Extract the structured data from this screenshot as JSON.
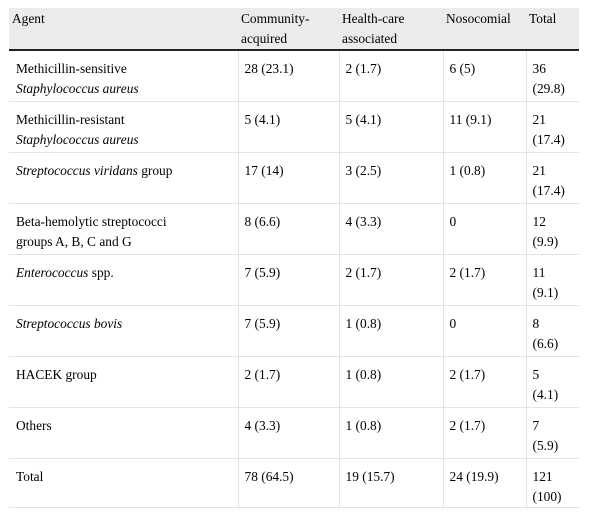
{
  "table": {
    "headers": [
      [
        "Agent"
      ],
      [
        "Community-",
        "acquired"
      ],
      [
        "Health-care",
        "associated"
      ],
      [
        "Nosocomial"
      ],
      [
        "Total"
      ]
    ],
    "rows": [
      {
        "agent": [
          {
            "text": "Methicillin-sensitive",
            "italic": false
          },
          {
            "text": "Staphylococcus aureus",
            "italic": true
          }
        ],
        "community": "28 (23.1)",
        "healthcare": "2 (1.7)",
        "nosocomial": "6 (5)",
        "total": [
          "36",
          "(29.8)"
        ]
      },
      {
        "agent": [
          {
            "text": "Methicillin-resistant",
            "italic": false
          },
          {
            "text": "Staphylococcus aureus",
            "italic": true
          }
        ],
        "community": "5 (4.1)",
        "healthcare": "5 (4.1)",
        "nosocomial": "11 (9.1)",
        "total": [
          "21",
          "(17.4)"
        ]
      },
      {
        "agent": [
          {
            "segments": [
              {
                "text": "Streptococcus viridans",
                "italic": true
              },
              {
                "text": " group",
                "italic": false
              }
            ]
          }
        ],
        "community": "17 (14)",
        "healthcare": "3 (2.5)",
        "nosocomial": "1 (0.8)",
        "total": [
          "21",
          "(17.4)"
        ]
      },
      {
        "agent": [
          {
            "text": "Beta-hemolytic streptococci",
            "italic": false
          },
          {
            "text": "groups A, B, C and G",
            "italic": false
          }
        ],
        "community": "8 (6.6)",
        "healthcare": "4 (3.3)",
        "nosocomial": "0",
        "total": [
          "12",
          "(9.9)"
        ]
      },
      {
        "agent": [
          {
            "segments": [
              {
                "text": "Enterococcus",
                "italic": true
              },
              {
                "text": " spp.",
                "italic": false
              }
            ]
          }
        ],
        "community": "7 (5.9)",
        "healthcare": "2 (1.7)",
        "nosocomial": "2 (1.7)",
        "total": [
          "11",
          "(9.1)"
        ]
      },
      {
        "agent": [
          {
            "text": "Streptococcus bovis",
            "italic": true
          }
        ],
        "community": "7 (5.9)",
        "healthcare": "1 (0.8)",
        "nosocomial": "0",
        "total": [
          "8",
          "(6.6)"
        ]
      },
      {
        "agent": [
          {
            "text": "HACEK group",
            "italic": false
          }
        ],
        "community": "2 (1.7)",
        "healthcare": "1 (0.8)",
        "nosocomial": "2 (1.7)",
        "total": [
          "5",
          "(4.1)"
        ]
      },
      {
        "agent": [
          {
            "text": "Others",
            "italic": false
          }
        ],
        "community": "4 (3.3)",
        "healthcare": "1 (0.8)",
        "nosocomial": "2 (1.7)",
        "total": [
          "7",
          "(5.9)"
        ]
      },
      {
        "agent": [
          {
            "text": "Total",
            "italic": false
          }
        ],
        "community": "78 (64.5)",
        "healthcare": "19 (15.7)",
        "nosocomial": "24 (19.9)",
        "total": [
          "121",
          "(100)"
        ]
      }
    ]
  }
}
